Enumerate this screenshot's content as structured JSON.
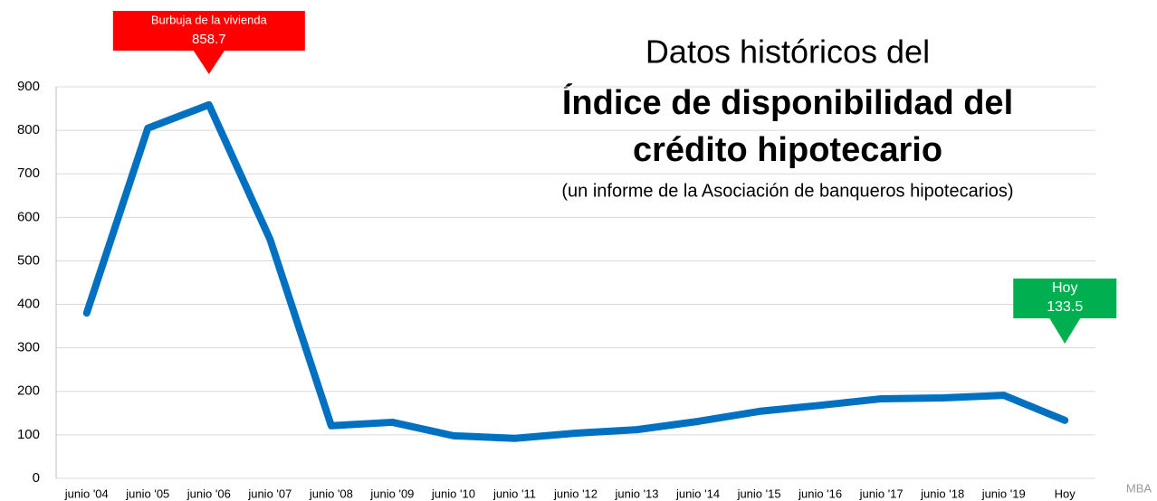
{
  "chart_data": {
    "type": "line",
    "title": [
      "Datos históricos del",
      "Índice de disponibilidad del",
      "crédito hipotecario"
    ],
    "subtitle": "(un informe de la Asociación de banqueros hipotecarios)",
    "source": "MBA",
    "categories": [
      "junio '04",
      "junio '05",
      "junio '06",
      "junio '07",
      "junio '08",
      "junio '09",
      "junio '10",
      "junio '11",
      "junio '12",
      "junio '13",
      "junio '14",
      "junio '15",
      "junio '16",
      "junio '17",
      "junio '18",
      "junio '19",
      "Hoy"
    ],
    "series": [
      {
        "color": "#0070c0",
        "values": [
          380,
          805,
          858.7,
          549,
          121,
          129,
          98,
          92,
          104,
          112,
          131,
          154,
          168,
          183,
          185,
          191,
          133.5
        ]
      }
    ],
    "ylim": [
      0,
      900
    ],
    "yticks": [
      0,
      100,
      200,
      300,
      400,
      500,
      600,
      700,
      800,
      900
    ],
    "grid": true,
    "annotations": [
      {
        "text": [
          "Burbuja de la vivienda",
          "858.7"
        ],
        "at": "junio '06",
        "color": "#ff0000"
      },
      {
        "text": [
          "Hoy",
          "133.5"
        ],
        "at": "Hoy",
        "color": "#00b050"
      }
    ]
  }
}
